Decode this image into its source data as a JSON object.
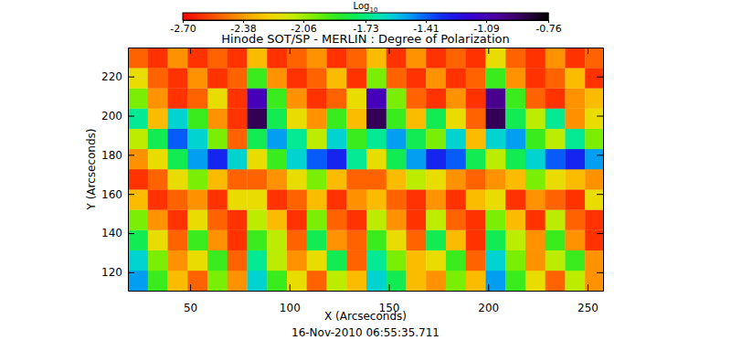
{
  "chart_data": {
    "type": "heatmap",
    "title": "Hinode SOT/SP - MERLIN : Degree of Polarization",
    "subtitle": "16-Nov-2010 06:55:35.711",
    "x_label": "X (Arcseconds)",
    "y_label": "Y (Arcseconds)",
    "xlim": [
      18.7,
      257.8
    ],
    "ylim": [
      110.6,
      234.8
    ],
    "xticks": [
      50,
      100,
      150,
      200,
      250
    ],
    "yticks": [
      120,
      140,
      160,
      180,
      200,
      220
    ],
    "x_edges": [
      18.7,
      28.7,
      38.7,
      48.7,
      58.7,
      68.7,
      78.7,
      88.7,
      98.7,
      108.7,
      118.7,
      128.7,
      138.7,
      148.7,
      158.7,
      168.7,
      178.7,
      188.7,
      198.7,
      208.7,
      218.7,
      228.7,
      238.7,
      248.7,
      258.7
    ],
    "y_edges": [
      110.6,
      120.95,
      131.3,
      141.65,
      152,
      162.35,
      172.7,
      183.05,
      193.4,
      203.75,
      214.1,
      224.45,
      234.8
    ],
    "z": [
      [
        -1.5,
        -1.9,
        -2.3,
        -2.5,
        -2.0,
        -2.4,
        -1.6,
        -1.9,
        -2.2,
        -2.5,
        -2.1,
        -2.3,
        -1.6,
        -1.8,
        -2.3,
        -2.4,
        -2.0,
        -2.3,
        -1.5,
        -1.9,
        -2.2,
        -2.5,
        -2.1,
        -2.4
      ],
      [
        -1.6,
        -2.0,
        -2.4,
        -2.2,
        -1.9,
        -2.5,
        -1.7,
        -2.1,
        -2.4,
        -2.2,
        -1.8,
        -2.5,
        -1.7,
        -2.0,
        -2.3,
        -2.2,
        -1.9,
        -2.5,
        -1.6,
        -2.0,
        -2.4,
        -2.1,
        -1.9,
        -2.4
      ],
      [
        -1.8,
        -2.2,
        -2.5,
        -1.9,
        -2.4,
        -2.6,
        -1.9,
        -2.1,
        -2.5,
        -1.8,
        -2.4,
        -2.5,
        -1.9,
        -2.2,
        -2.5,
        -1.8,
        -2.3,
        -2.6,
        -1.8,
        -2.1,
        -2.4,
        -1.9,
        -2.4,
        -2.6
      ],
      [
        -2.0,
        -2.4,
        -2.6,
        -2.2,
        -2.5,
        -2.6,
        -2.1,
        -2.3,
        -2.6,
        -2.0,
        -2.5,
        -2.6,
        -2.1,
        -2.4,
        -2.6,
        -2.1,
        -2.5,
        -2.6,
        -2.0,
        -2.3,
        -2.6,
        -2.1,
        -2.5,
        -2.6
      ],
      [
        -2.3,
        -2.6,
        -2.5,
        -2.4,
        -2.6,
        -2.2,
        -2.2,
        -2.6,
        -2.5,
        -2.3,
        -2.6,
        -2.4,
        -2.3,
        -2.5,
        -2.6,
        -2.4,
        -2.6,
        -2.3,
        -2.2,
        -2.6,
        -2.4,
        -2.5,
        -2.6,
        -2.2
      ],
      [
        -2.6,
        -2.5,
        -2.2,
        -2.0,
        -2.3,
        -2.5,
        -2.5,
        -2.4,
        -2.2,
        -2.0,
        -2.3,
        -2.5,
        -2.5,
        -2.3,
        -2.1,
        -2.2,
        -2.4,
        -2.5,
        -2.4,
        -2.3,
        -2.0,
        -2.2,
        -2.3,
        -2.4
      ],
      [
        -2.4,
        -2.2,
        -1.8,
        -1.5,
        -1.3,
        -1.6,
        -2.2,
        -1.9,
        -1.6,
        -1.4,
        -1.3,
        -1.7,
        -2.2,
        -1.8,
        -1.5,
        -1.3,
        -1.4,
        -1.8,
        -2.1,
        -1.8,
        -1.6,
        -1.4,
        -1.3,
        -1.5
      ],
      [
        -2.1,
        -1.8,
        -1.4,
        -1.6,
        -2.0,
        -2.5,
        -1.8,
        -1.5,
        -1.7,
        -2.1,
        -1.6,
        -1.9,
        -1.7,
        -1.5,
        -1.8,
        -2.0,
        -1.6,
        -2.3,
        -1.6,
        -1.5,
        -1.9,
        -2.1,
        -1.7,
        -2.0
      ],
      [
        -1.7,
        -2.3,
        -1.6,
        -1.9,
        -2.4,
        -2.6,
        -0.9,
        -1.8,
        -2.2,
        -2.4,
        -1.9,
        -2.3,
        -0.9,
        -1.9,
        -2.3,
        -1.8,
        -2.2,
        -2.5,
        -0.9,
        -1.8,
        -2.1,
        -1.7,
        -2.4,
        -2.2
      ],
      [
        -2.0,
        -2.4,
        -2.6,
        -2.5,
        -2.2,
        -2.6,
        -1.1,
        -1.9,
        -2.4,
        -2.6,
        -2.5,
        -2.2,
        -1.1,
        -2.0,
        -2.5,
        -2.6,
        -2.4,
        -2.6,
        -1.0,
        -1.9,
        -2.5,
        -2.6,
        -2.4,
        -2.3
      ],
      [
        -2.2,
        -2.5,
        -2.6,
        -2.4,
        -2.6,
        -2.5,
        -1.9,
        -2.4,
        -2.6,
        -2.5,
        -2.3,
        -2.6,
        -2.0,
        -2.5,
        -2.6,
        -2.4,
        -2.6,
        -2.5,
        -1.9,
        -2.4,
        -2.6,
        -2.5,
        -2.3,
        -2.6
      ],
      [
        -2.5,
        -2.6,
        -2.4,
        -2.6,
        -2.5,
        -2.6,
        -2.3,
        -2.6,
        -2.5,
        -2.4,
        -2.6,
        -2.5,
        -2.3,
        -2.6,
        -2.4,
        -2.6,
        -2.5,
        -2.6,
        -2.2,
        -2.5,
        -2.6,
        -2.4,
        -2.6,
        -2.5
      ]
    ],
    "colorbar": {
      "title": "Log10",
      "range": [
        -2.7,
        -0.76
      ],
      "ticks": [
        {
          "value": -2.7,
          "label": "-2.70"
        },
        -2.38,
        -2.06,
        -1.73,
        -1.41,
        -1.09,
        -0.76
      ]
    }
  }
}
